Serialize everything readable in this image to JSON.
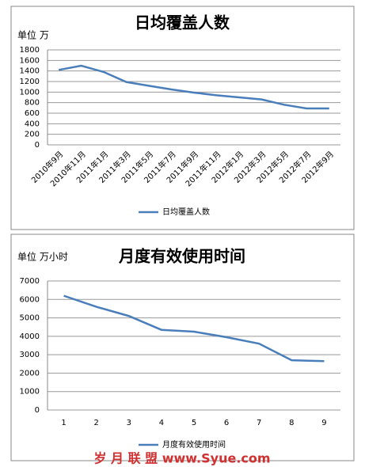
{
  "chart_data": [
    {
      "type": "line",
      "title": "日均覆盖人数",
      "y_label": "单位 万",
      "categories": [
        "2010年9月",
        "2010年11月",
        "2011年1月",
        "2011年3月",
        "2011年5月",
        "2011年7月",
        "2011年9月",
        "2011年11月",
        "2012年1月",
        "2012年3月",
        "2012年5月",
        "2012年7月",
        "2012年9月"
      ],
      "series": [
        {
          "name": "日均覆盖人数",
          "color": "#4a7ebb",
          "values": [
            1420,
            1500,
            1380,
            1190,
            1120,
            1050,
            990,
            940,
            900,
            860,
            760,
            690,
            690
          ]
        }
      ],
      "ylim": [
        0,
        1800
      ],
      "yticks": [
        0,
        200,
        400,
        600,
        800,
        1000,
        1200,
        1400,
        1600,
        1800
      ],
      "grid": true,
      "legend": "bottom"
    },
    {
      "type": "line",
      "title": "月度有效使用时间",
      "y_label": "单位 万小时",
      "categories": [
        "1",
        "2",
        "3",
        "4",
        "5",
        "6",
        "7",
        "8",
        "9"
      ],
      "series": [
        {
          "name": "月度有效使用时间",
          "color": "#4a7ebb",
          "values": [
            6200,
            5600,
            5100,
            4350,
            4250,
            3950,
            3600,
            2700,
            2650
          ]
        }
      ],
      "ylim": [
        0,
        7000
      ],
      "yticks": [
        0,
        1000,
        2000,
        3000,
        4000,
        5000,
        6000,
        7000
      ],
      "grid": true,
      "legend": "bottom"
    }
  ],
  "watermark": "岁 月 联 盟 www.Syue.com"
}
